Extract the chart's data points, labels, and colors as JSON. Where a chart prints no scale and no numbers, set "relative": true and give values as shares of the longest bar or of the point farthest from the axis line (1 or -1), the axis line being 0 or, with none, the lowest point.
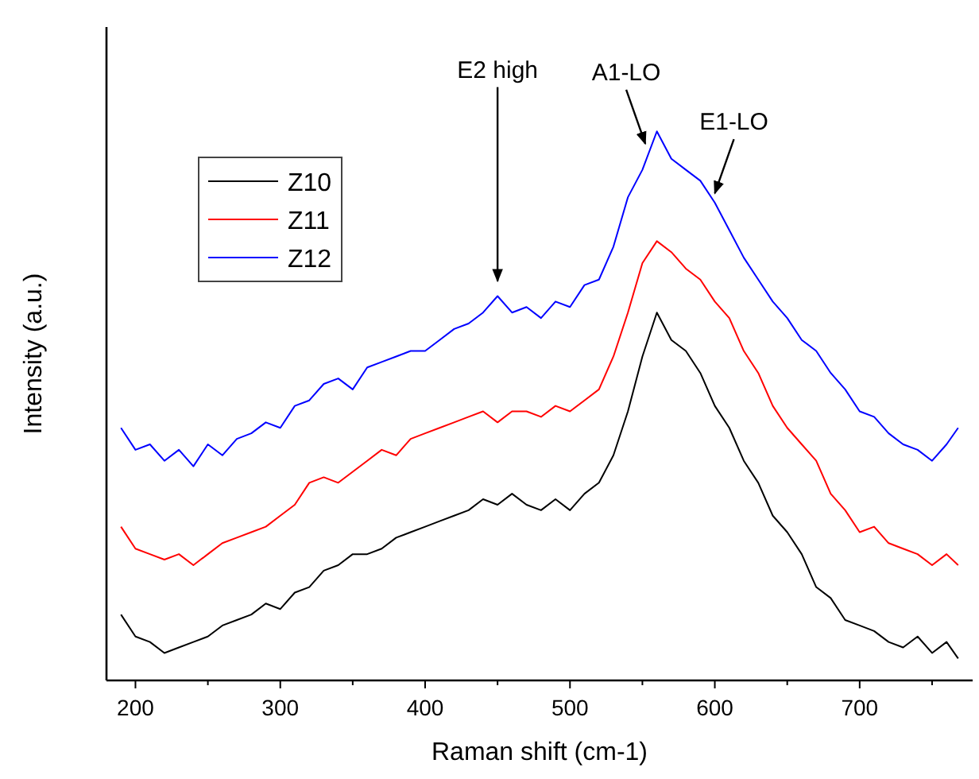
{
  "chart_data": {
    "type": "line",
    "relative": true,
    "xlabel": "Raman shift (cm-1)",
    "ylabel": "Intensity (a.u.)",
    "x": [
      190,
      200,
      210,
      220,
      230,
      240,
      250,
      260,
      270,
      280,
      290,
      300,
      310,
      320,
      330,
      340,
      350,
      360,
      370,
      380,
      390,
      400,
      410,
      420,
      430,
      440,
      450,
      460,
      470,
      480,
      490,
      500,
      510,
      520,
      530,
      540,
      550,
      560,
      570,
      580,
      590,
      600,
      610,
      620,
      630,
      640,
      650,
      660,
      670,
      680,
      690,
      700,
      710,
      720,
      730,
      740,
      750,
      760,
      768
    ],
    "xlim": [
      180,
      778
    ],
    "xticks": [
      200,
      {
        "value": 250,
        "label": null
      },
      300,
      {
        "value": 350,
        "label": null
      },
      400,
      {
        "value": 450,
        "label": null
      },
      500,
      {
        "value": 550,
        "label": null
      },
      600,
      {
        "value": 650,
        "label": null
      },
      700,
      {
        "value": 750,
        "label": null
      }
    ],
    "series": [
      {
        "name": "Z10",
        "color": "#000000",
        "values": [
          0.12,
          0.08,
          0.07,
          0.05,
          0.06,
          0.07,
          0.08,
          0.1,
          0.11,
          0.12,
          0.14,
          0.13,
          0.16,
          0.17,
          0.2,
          0.21,
          0.23,
          0.23,
          0.24,
          0.26,
          0.27,
          0.28,
          0.29,
          0.3,
          0.31,
          0.33,
          0.32,
          0.34,
          0.32,
          0.31,
          0.33,
          0.31,
          0.34,
          0.36,
          0.41,
          0.49,
          0.59,
          0.67,
          0.62,
          0.6,
          0.56,
          0.5,
          0.46,
          0.4,
          0.36,
          0.3,
          0.27,
          0.23,
          0.17,
          0.15,
          0.11,
          0.1,
          0.09,
          0.07,
          0.06,
          0.08,
          0.05,
          0.07,
          0.04
        ]
      },
      {
        "name": "Z11",
        "color": "#ff0000",
        "values": [
          0.28,
          0.24,
          0.23,
          0.22,
          0.23,
          0.21,
          0.23,
          0.25,
          0.26,
          0.27,
          0.28,
          0.3,
          0.32,
          0.36,
          0.37,
          0.36,
          0.38,
          0.4,
          0.42,
          0.41,
          0.44,
          0.45,
          0.46,
          0.47,
          0.48,
          0.49,
          0.47,
          0.49,
          0.49,
          0.48,
          0.5,
          0.49,
          0.51,
          0.53,
          0.59,
          0.67,
          0.76,
          0.8,
          0.78,
          0.75,
          0.73,
          0.69,
          0.66,
          0.6,
          0.56,
          0.5,
          0.46,
          0.43,
          0.4,
          0.34,
          0.31,
          0.27,
          0.28,
          0.25,
          0.24,
          0.23,
          0.21,
          0.23,
          0.21
        ]
      },
      {
        "name": "Z12",
        "color": "#0000ff",
        "values": [
          0.46,
          0.42,
          0.43,
          0.4,
          0.42,
          0.39,
          0.43,
          0.41,
          0.44,
          0.45,
          0.47,
          0.46,
          0.5,
          0.51,
          0.54,
          0.55,
          0.53,
          0.57,
          0.58,
          0.59,
          0.6,
          0.6,
          0.62,
          0.64,
          0.65,
          0.67,
          0.7,
          0.67,
          0.68,
          0.66,
          0.69,
          0.68,
          0.72,
          0.73,
          0.79,
          0.88,
          0.93,
          1,
          0.95,
          0.93,
          0.91,
          0.87,
          0.82,
          0.77,
          0.73,
          0.69,
          0.66,
          0.62,
          0.6,
          0.56,
          0.53,
          0.49,
          0.48,
          0.45,
          0.43,
          0.42,
          0.4,
          0.43,
          0.46
        ]
      }
    ],
    "annotations": [
      {
        "text": "E2 high",
        "x": 450,
        "y": 0.71
      },
      {
        "text": "A1-LO",
        "x": 552,
        "y": 0.96
      },
      {
        "text": "E1-LO",
        "x": 600,
        "y": 0.87
      }
    ],
    "legend": "top left",
    "grid": false,
    "marker": "none",
    "line_style": "solid"
  }
}
